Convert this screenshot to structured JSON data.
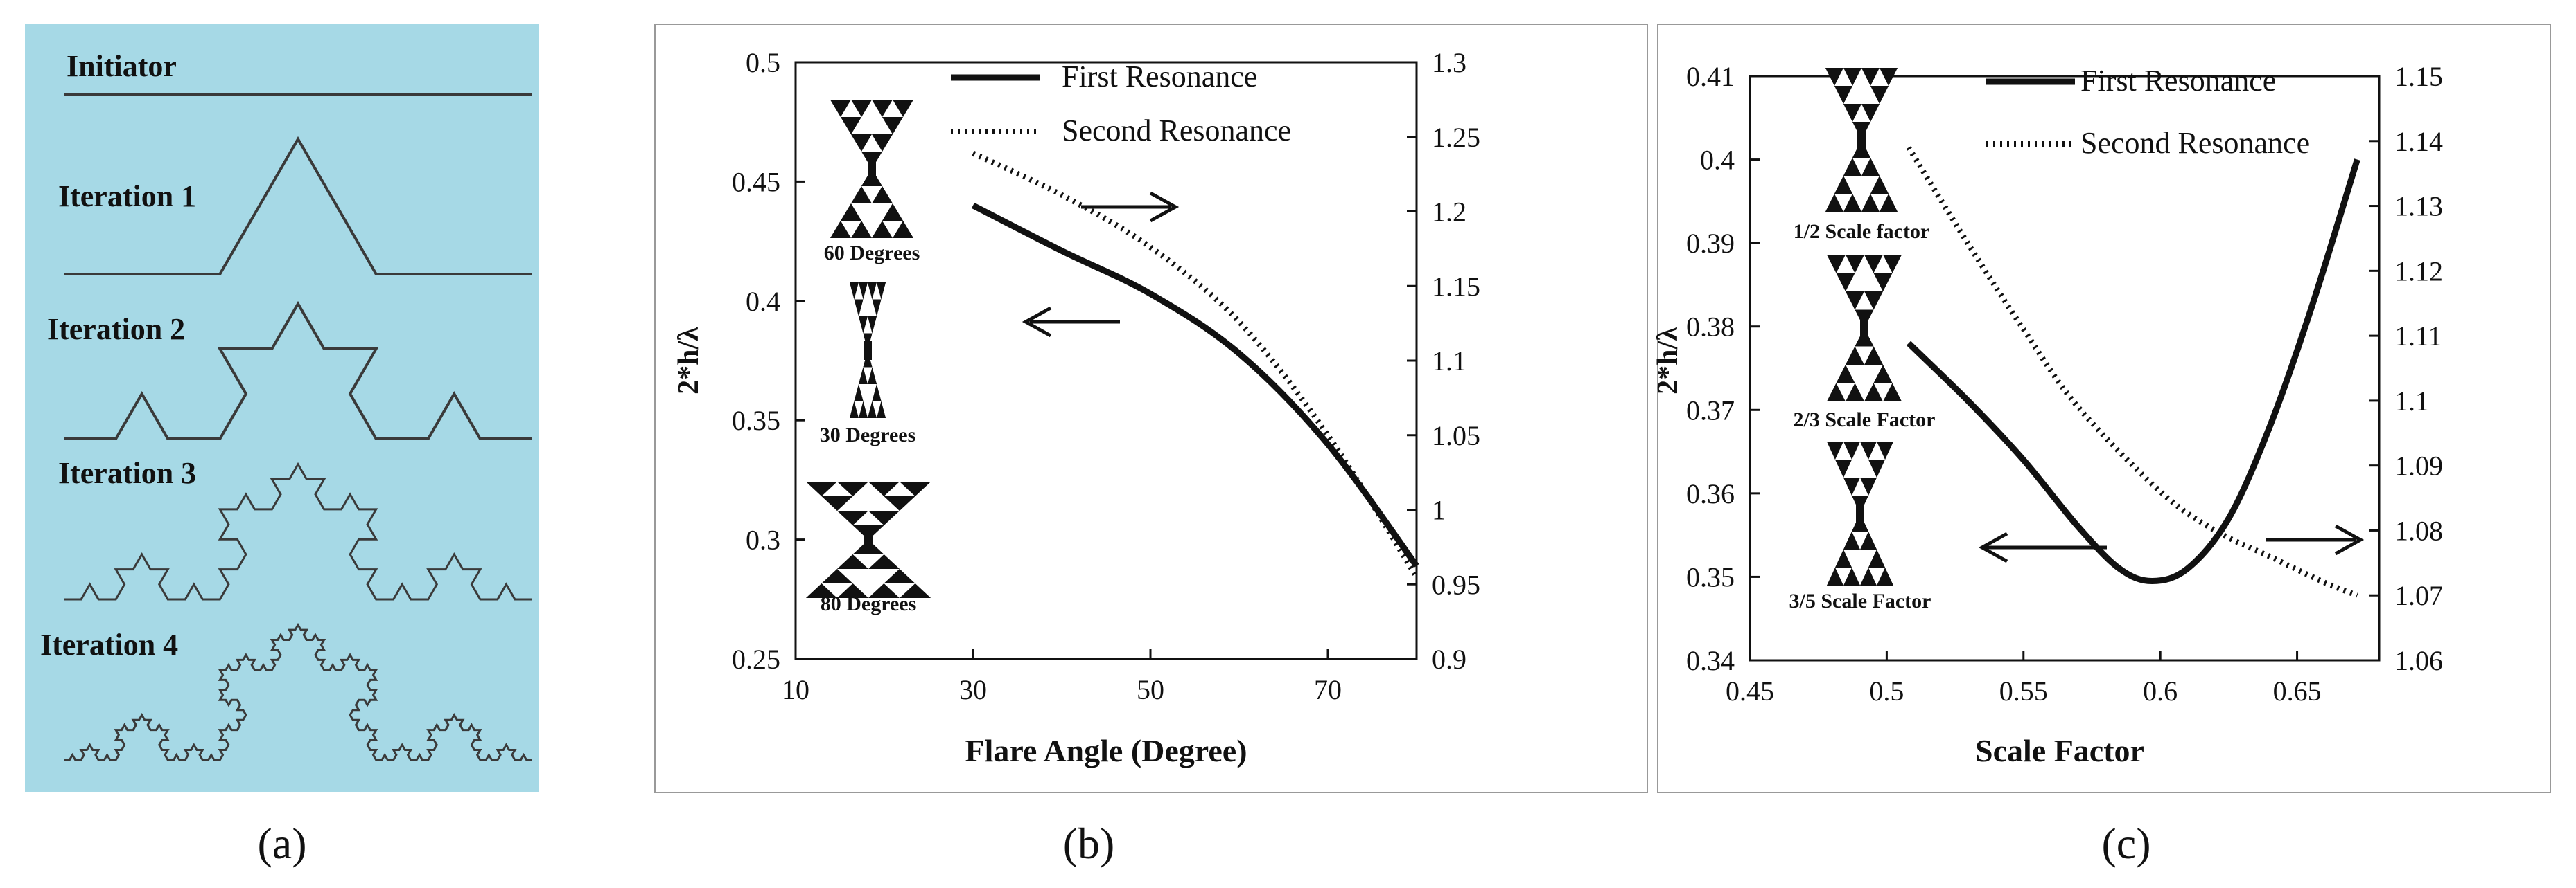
{
  "panels": [
    {
      "label": "(a)"
    },
    {
      "label": "(b)"
    },
    {
      "label": "(c)"
    }
  ],
  "koch": {
    "background": "#a6d9e6",
    "line_color": "#3a3a3a",
    "rows": [
      {
        "label": "Initiator",
        "iteration": 0
      },
      {
        "label": "Iteration 1",
        "iteration": 1
      },
      {
        "label": "Iteration 2",
        "iteration": 2
      },
      {
        "label": "Iteration 3",
        "iteration": 3
      },
      {
        "label": "Iteration 4",
        "iteration": 4
      }
    ]
  },
  "chart_data": [
    {
      "type": "line",
      "title": "",
      "xlabel": "Flare Angle (Degree)",
      "ylabel": "2*h/λ",
      "y2label": "",
      "xlim": [
        10,
        80
      ],
      "xticks": [
        10,
        30,
        50,
        70
      ],
      "ylim": [
        0.25,
        0.5
      ],
      "yticks": [
        0.25,
        0.3,
        0.35,
        0.4,
        0.45,
        0.5
      ],
      "y2lim": [
        0.9,
        1.3
      ],
      "y2ticks": [
        0.9,
        0.95,
        1,
        1.05,
        1.1,
        1.15,
        1.2,
        1.25,
        1.3
      ],
      "grid": false,
      "legend": "top-right",
      "series": [
        {
          "name": "First Resonance",
          "axis": "left",
          "style": "solid",
          "x": [
            30,
            40,
            50,
            60,
            70,
            80
          ],
          "y": [
            0.44,
            0.421,
            0.403,
            0.378,
            0.34,
            0.289
          ]
        },
        {
          "name": "Second Resonance",
          "axis": "right",
          "style": "dotted",
          "x": [
            30,
            40,
            50,
            60,
            70,
            80
          ],
          "y": [
            1.239,
            1.211,
            1.176,
            1.126,
            1.05,
            0.955
          ]
        }
      ],
      "insets": [
        {
          "caption": "60 Degrees"
        },
        {
          "caption": "30 Degrees"
        },
        {
          "caption": "80 Degrees"
        }
      ],
      "arrows": [
        {
          "direction": "right"
        },
        {
          "direction": "left"
        }
      ]
    },
    {
      "type": "line",
      "title": "",
      "xlabel": "Scale Factor",
      "ylabel": "2*h/λ",
      "y2label": "",
      "xlim": [
        0.45,
        0.68
      ],
      "xticks": [
        0.45,
        0.5,
        0.55,
        0.6,
        0.65
      ],
      "ylim": [
        0.34,
        0.41
      ],
      "yticks": [
        0.34,
        0.35,
        0.36,
        0.37,
        0.38,
        0.39,
        0.4,
        0.41
      ],
      "y2lim": [
        1.06,
        1.15
      ],
      "y2ticks": [
        1.06,
        1.07,
        1.08,
        1.09,
        1.1,
        1.11,
        1.12,
        1.13,
        1.14,
        1.15
      ],
      "grid": false,
      "legend": "top-right",
      "series": [
        {
          "name": "First Resonance",
          "axis": "left",
          "style": "solid",
          "x": [
            0.508,
            0.53,
            0.55,
            0.57,
            0.585,
            0.597,
            0.61,
            0.625,
            0.64,
            0.655,
            0.672
          ],
          "y": [
            0.378,
            0.371,
            0.364,
            0.356,
            0.351,
            0.3495,
            0.351,
            0.357,
            0.368,
            0.382,
            0.4
          ]
        },
        {
          "name": "Second Resonance",
          "axis": "right",
          "style": "dotted",
          "x": [
            0.508,
            0.53,
            0.55,
            0.57,
            0.6,
            0.62,
            0.64,
            0.66,
            0.672
          ],
          "y": [
            1.139,
            1.124,
            1.111,
            1.099,
            1.086,
            1.08,
            1.076,
            1.072,
            1.07
          ]
        }
      ],
      "insets": [
        {
          "caption": "1/2 Scale factor"
        },
        {
          "caption": "2/3 Scale Factor"
        },
        {
          "caption": "3/5 Scale Factor"
        }
      ],
      "arrows": [
        {
          "direction": "left"
        },
        {
          "direction": "right"
        }
      ]
    }
  ]
}
